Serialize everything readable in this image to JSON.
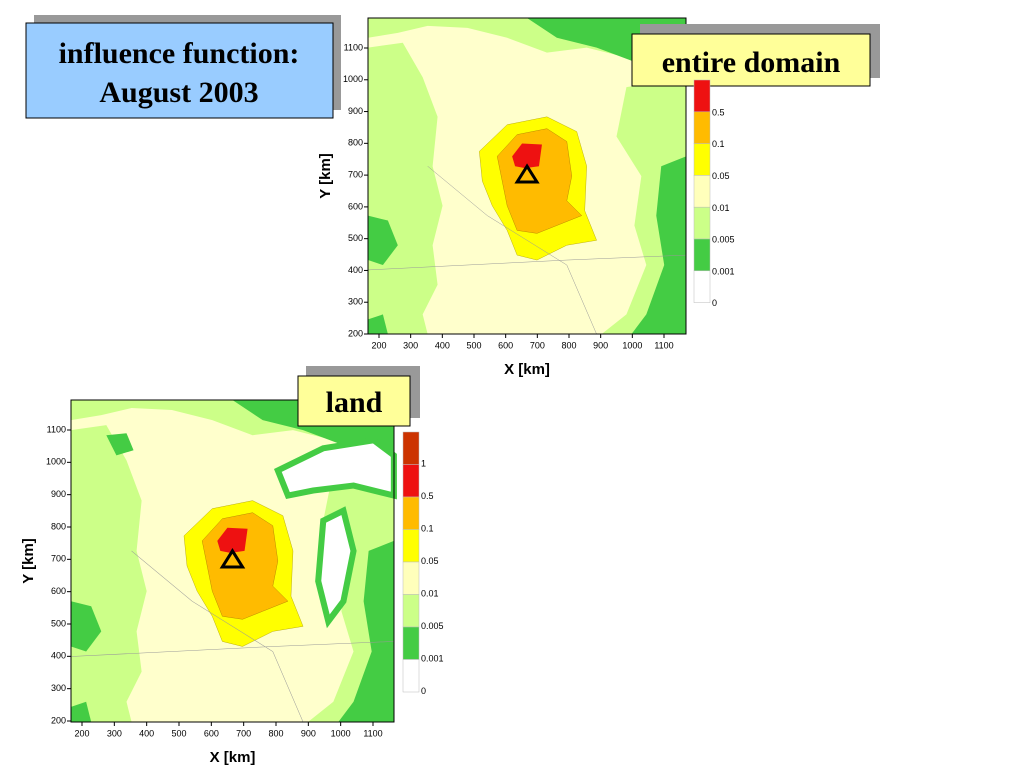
{
  "title_box": {
    "lines": [
      "influence function:",
      "August 2003"
    ]
  },
  "panels": [
    {
      "label": "entire domain",
      "x_axis_label": "X [km]",
      "y_axis_label": "Y [km]",
      "xticks": [
        200,
        300,
        400,
        500,
        600,
        700,
        800,
        900,
        1000,
        1100
      ],
      "yticks": [
        200,
        300,
        400,
        500,
        600,
        700,
        800,
        900,
        1000,
        1100
      ],
      "colorbar_labels": [
        "0.5",
        "0.1",
        "0.05",
        "0.01",
        "0.005",
        "0.001",
        "0"
      ]
    },
    {
      "label": "land",
      "x_axis_label": "X [km]",
      "y_axis_label": "Y [km]",
      "xticks": [
        200,
        300,
        400,
        500,
        600,
        700,
        800,
        900,
        1000,
        1100
      ],
      "yticks": [
        200,
        300,
        400,
        500,
        600,
        700,
        800,
        900,
        1000,
        1100
      ],
      "colorbar_labels": [
        "1",
        "0.5",
        "0.1",
        "0.05",
        "0.01",
        "0.005",
        "0.001",
        "0"
      ]
    }
  ]
}
